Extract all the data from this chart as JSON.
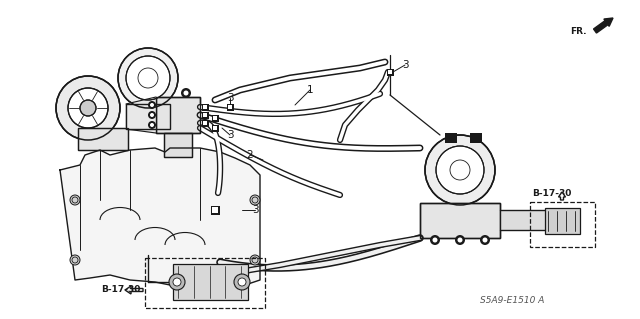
{
  "bg_color": "#ffffff",
  "fig_width": 6.4,
  "fig_height": 3.19,
  "dpi": 100,
  "diagram_code": "S5A9-E1510 A",
  "fr_label": "FR.",
  "b1730_label": "B-17-30",
  "text_color": "#1a1a1a"
}
